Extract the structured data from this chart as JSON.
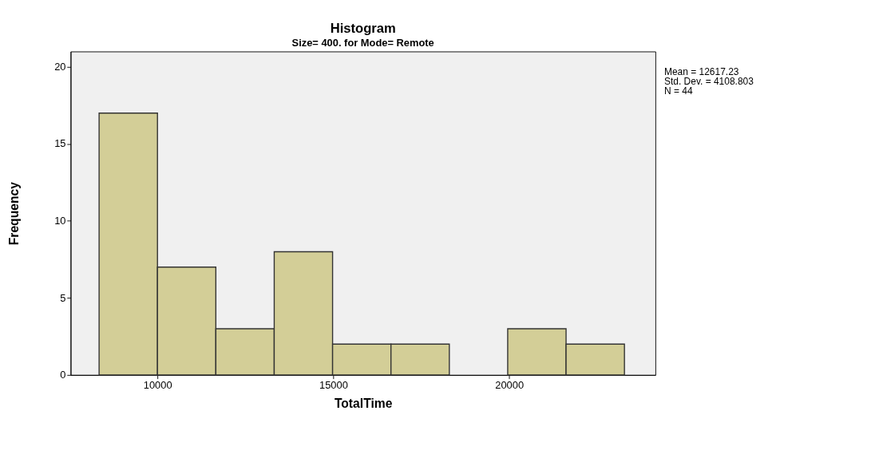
{
  "chart_data": {
    "type": "histogram",
    "title": "Histogram",
    "subtitle": "Size= 400. for Mode= Remote",
    "xlabel": "TotalTime",
    "ylabel": "Frequency",
    "bins": [
      8340,
      10000,
      11660,
      13320,
      14980,
      16640,
      18300,
      19960,
      21620,
      23280
    ],
    "values": [
      17,
      7,
      3,
      8,
      2,
      2,
      0,
      3,
      2
    ],
    "color": "#d3ce97",
    "xlim": [
      7530,
      24160
    ],
    "xticks": [
      10000,
      15000,
      20000
    ],
    "ylim": [
      0,
      21
    ],
    "yticks": [
      0,
      5,
      10,
      15,
      20
    ],
    "grid": false,
    "annotations": [
      "Mean = 12617.23",
      "Std. Dev. = 4108.803",
      "N = 44"
    ]
  }
}
